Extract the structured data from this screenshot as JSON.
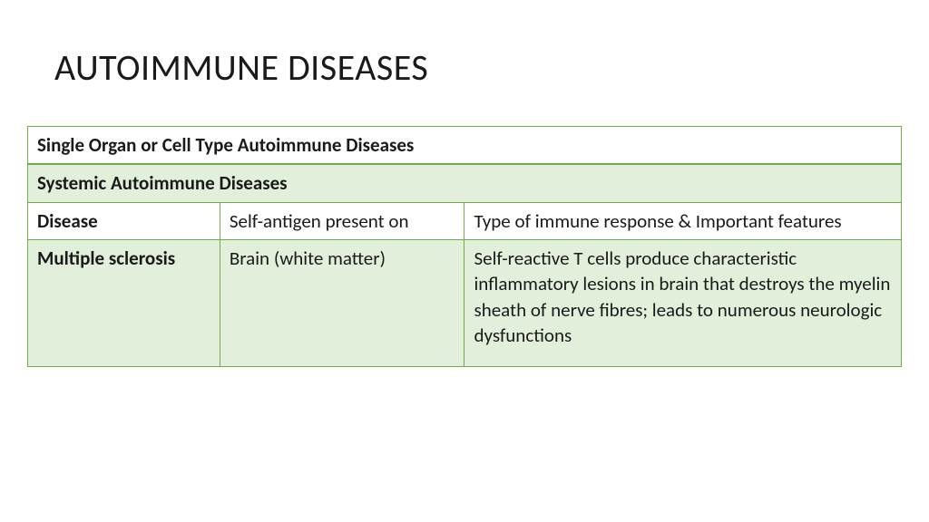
{
  "title": "AUTOIMMUNE DISEASES",
  "table": {
    "header1": "Single Organ or Cell Type Autoimmune Diseases",
    "header2": "Systemic Autoimmune Diseases",
    "columns": {
      "c1": "Disease",
      "c2": "Self-antigen present on",
      "c3": "Type of immune response & Important features"
    },
    "row": {
      "c1": "Multiple sclerosis",
      "c2": "Brain (white matter)",
      "c3": "Self-reactive T cells produce characteristic inflammatory lesions in brain that destroys the myelin sheath of nerve fibres; leads to numerous neurologic dysfunctions"
    },
    "border_color": "#70ad47",
    "band_color": "#e2efda",
    "background_color": "#ffffff",
    "title_fontsize": 40,
    "cell_fontsize": 21
  }
}
